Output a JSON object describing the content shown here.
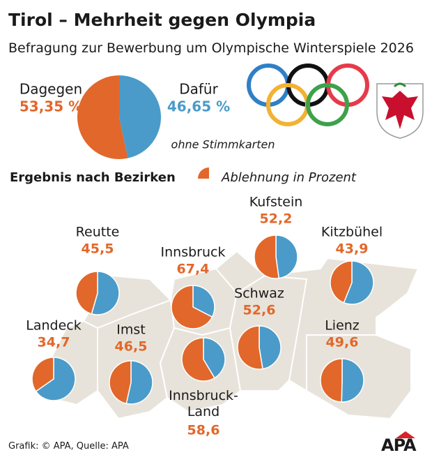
{
  "chart_data": [
    {
      "type": "pie",
      "title": "Tirol – Mehrheit gegen Olympia",
      "subtitle": "Befragung zur Bewerbung um Olympische Winterspiele 2026",
      "categories": [
        "Dagegen",
        "Dafür"
      ],
      "values": [
        53.35,
        46.65
      ],
      "value_labels": [
        "53,35 %",
        "46,65 %"
      ],
      "colors": [
        "#e2672a",
        "#4a9bc9"
      ],
      "note": "ohne Stimmkarten"
    },
    {
      "type": "pie_map",
      "title": "Ergebnis nach Bezirken",
      "legend": "Ablehnung in Prozent",
      "categories": [
        "Reutte",
        "Kufstein",
        "Kitzbühel",
        "Innsbruck",
        "Schwaz",
        "Landeck",
        "Imst",
        "Lienz",
        "Innsbruck-Land"
      ],
      "values": [
        45.5,
        52.2,
        43.9,
        67.4,
        52.6,
        34.7,
        46.5,
        49.6,
        58.6
      ],
      "value_labels": [
        "45,5",
        "52,2",
        "43,9",
        "67,4",
        "52,6",
        "34,7",
        "46,5",
        "49,6",
        "58,6"
      ],
      "colors": [
        "#e2672a",
        "#4a9bc9"
      ],
      "source": "Grafik: © APA, Quelle: APA",
      "logo": "APA"
    }
  ]
}
